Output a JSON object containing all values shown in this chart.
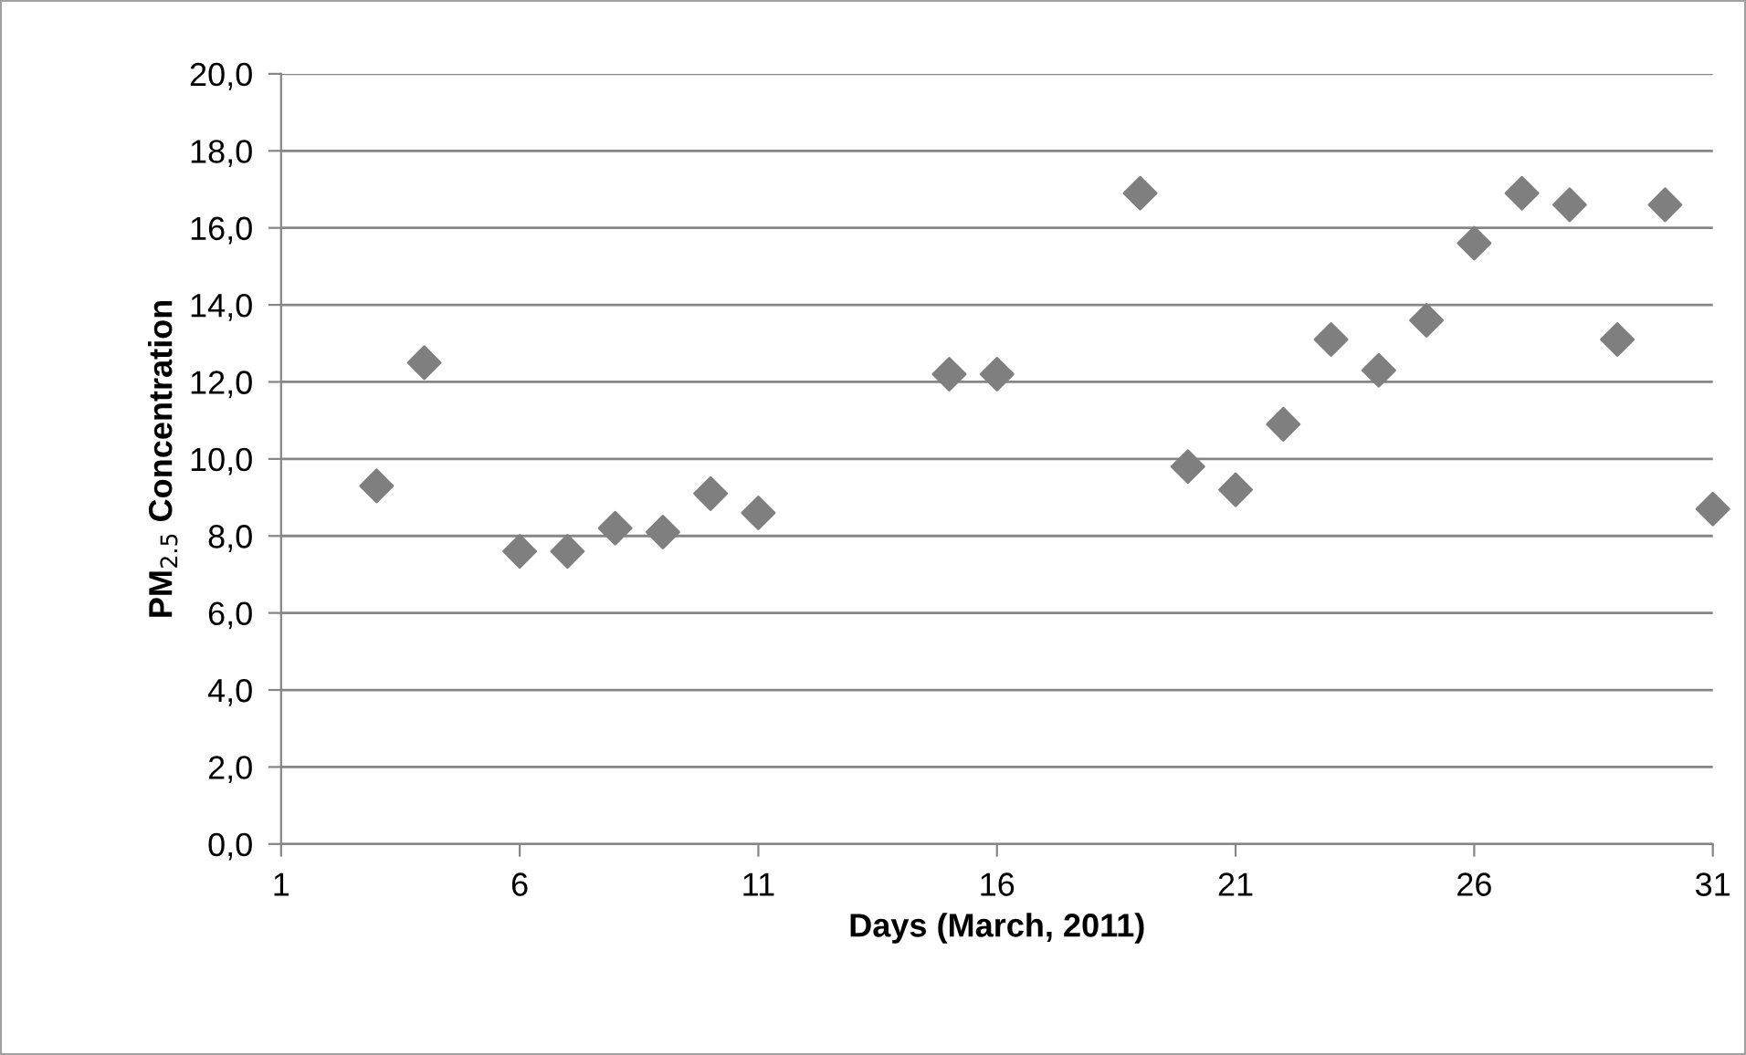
{
  "chart_data": {
    "type": "scatter",
    "xlabel": "Days (March, 2011)",
    "ylabel": "PM$_{2.5}$ Concentration",
    "x": [
      3,
      4,
      6,
      7,
      8,
      9,
      10,
      11,
      15,
      16,
      19,
      20,
      21,
      22,
      23,
      24,
      25,
      26,
      27,
      28,
      29,
      30,
      31
    ],
    "series": [
      {
        "color": "#7f7f7f",
        "values": [
          9.3,
          12.5,
          7.6,
          7.6,
          8.2,
          8.1,
          9.1,
          8.6,
          12.2,
          12.2,
          16.9,
          9.8,
          9.2,
          10.9,
          13.1,
          12.3,
          13.6,
          15.6,
          16.9,
          16.6,
          13.1,
          16.6,
          8.7
        ]
      }
    ],
    "marker": "diamond",
    "grid": "y",
    "legend": false,
    "xlim": [
      1,
      31
    ],
    "xticks": [
      1,
      6,
      11,
      16,
      21,
      26,
      31
    ],
    "ylim": [
      0,
      20
    ],
    "yticks": [
      {
        "value": 0,
        "label": "0,0"
      },
      {
        "value": 2,
        "label": "2,0"
      },
      {
        "value": 4,
        "label": "4,0"
      },
      {
        "value": 6,
        "label": "6,0"
      },
      {
        "value": 8,
        "label": "8,0"
      },
      {
        "value": 10,
        "label": "10,0"
      },
      {
        "value": 12,
        "label": "12,0"
      },
      {
        "value": 14,
        "label": "14,0"
      },
      {
        "value": 16,
        "label": "16,0"
      },
      {
        "value": 18,
        "label": "18,0"
      },
      {
        "value": 20,
        "label": "20,0"
      }
    ]
  }
}
